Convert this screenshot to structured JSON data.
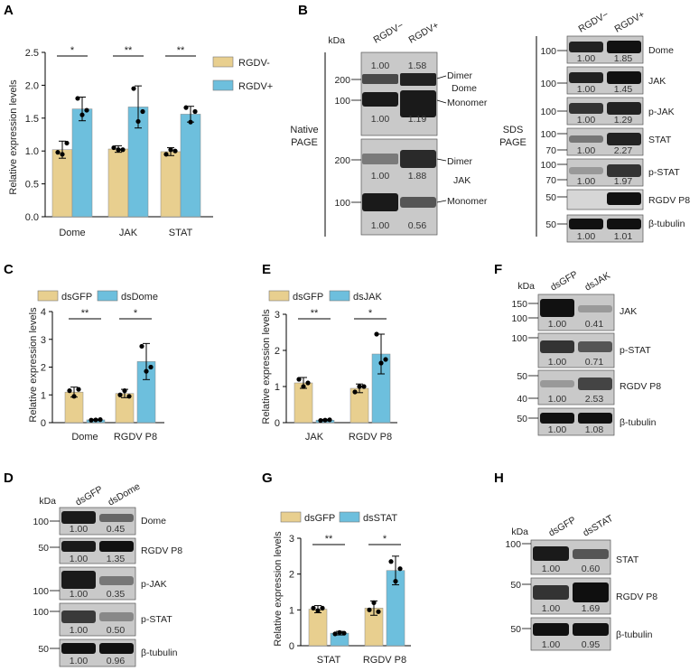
{
  "panels": [
    "A",
    "B",
    "C",
    "D",
    "E",
    "F",
    "G",
    "H"
  ],
  "colors": {
    "bar_a": "#e8cf8f",
    "bar_b": "#6dbfdd",
    "blot_bg": "#c9c9c9"
  },
  "chart_data": [
    {
      "id": "A",
      "type": "bar",
      "categories": [
        "Dome",
        "JAK",
        "STAT"
      ],
      "series": [
        {
          "name": "RGDV-",
          "values": [
            1.02,
            1.03,
            0.99
          ],
          "errors": [
            0.13,
            0.05,
            0.06
          ],
          "points": [
            [
              0.98,
              0.95,
              1.12
            ],
            [
              1.05,
              1.02,
              1.02
            ],
            [
              0.95,
              1.02,
              1.0
            ]
          ]
        },
        {
          "name": "RGDV+",
          "values": [
            1.64,
            1.67,
            1.56
          ],
          "errors": [
            0.18,
            0.32,
            0.12
          ],
          "points": [
            [
              1.8,
              1.55,
              1.62
            ],
            [
              1.95,
              1.45,
              1.6
            ],
            [
              1.66,
              1.44,
              1.6
            ]
          ]
        }
      ],
      "significance": [
        "*",
        "**",
        "**"
      ],
      "ylabel": "Relative expression levels",
      "yticks": [
        "0.0",
        "0.5",
        "1.0",
        "1.5",
        "2.0",
        "2.5"
      ],
      "ylim": [
        0,
        2.5
      ]
    },
    {
      "id": "C",
      "type": "bar",
      "categories": [
        "Dome",
        "RGDV P8"
      ],
      "series": [
        {
          "name": "dsGFP",
          "values": [
            1.1,
            1.05
          ],
          "errors": [
            0.18,
            0.15
          ],
          "points": [
            [
              1.15,
              0.95,
              1.2
            ],
            [
              1.0,
              1.15,
              0.95
            ]
          ]
        },
        {
          "name": "dsDome",
          "values": [
            0.1,
            2.2
          ],
          "errors": [
            0.02,
            0.65
          ],
          "points": [
            [
              0.09,
              0.1,
              0.11
            ],
            [
              2.75,
              1.85,
              2.0
            ]
          ]
        }
      ],
      "significance": [
        "**",
        "*"
      ],
      "ylabel": "Relative expression levels",
      "yticks": [
        "0",
        "1",
        "2",
        "3",
        "4"
      ],
      "ylim": [
        0,
        4
      ]
    },
    {
      "id": "E",
      "type": "bar",
      "categories": [
        "JAK",
        "RGDV P8"
      ],
      "series": [
        {
          "name": "dsGFP",
          "values": [
            1.1,
            0.95
          ],
          "errors": [
            0.15,
            0.12
          ],
          "points": [
            [
              1.2,
              1.0,
              1.1
            ],
            [
              0.85,
              1.0,
              1.0
            ]
          ]
        },
        {
          "name": "dsJAK",
          "values": [
            0.07,
            1.9
          ],
          "errors": [
            0.02,
            0.55
          ],
          "points": [
            [
              0.06,
              0.07,
              0.08
            ],
            [
              2.45,
              1.65,
              1.75
            ]
          ]
        }
      ],
      "significance": [
        "**",
        "*"
      ],
      "ylabel": "Relative expression levels",
      "yticks": [
        "0",
        "1",
        "2",
        "3"
      ],
      "ylim": [
        0,
        3
      ]
    },
    {
      "id": "G",
      "type": "bar",
      "categories": [
        "STAT",
        "RGDV P8"
      ],
      "series": [
        {
          "name": "dsGFP",
          "values": [
            1.02,
            1.05
          ],
          "errors": [
            0.1,
            0.2
          ],
          "points": [
            [
              1.05,
              0.98,
              1.05
            ],
            [
              1.0,
              1.2,
              0.95
            ]
          ]
        },
        {
          "name": "dsSTAT",
          "values": [
            0.35,
            2.1
          ],
          "errors": [
            0.05,
            0.4
          ],
          "points": [
            [
              0.33,
              0.37,
              0.35
            ],
            [
              2.35,
              1.8,
              2.15
            ]
          ]
        }
      ],
      "significance": [
        "**",
        "*"
      ],
      "ylabel": "Relative expression levels",
      "yticks": [
        "0",
        "1",
        "2",
        "3"
      ],
      "ylim": [
        0,
        3
      ]
    }
  ],
  "blots": {
    "B_native": {
      "kda": "kDa",
      "lanes": [
        "RGDV−",
        "RGDV+"
      ],
      "side_label": [
        "Native",
        "PAGE"
      ],
      "dome": {
        "markers": [
          "200",
          "100"
        ],
        "name": "Dome",
        "dimer_label": "Dimer",
        "monomer_label": "Monomer",
        "dimer_values": [
          "1.00",
          "1.58"
        ],
        "monomer_values": [
          "1.00",
          "1.19"
        ]
      },
      "jak": {
        "markers": [
          "200",
          "100"
        ],
        "name": "JAK",
        "dimer_label": "Dimer",
        "monomer_label": "Monomer",
        "dimer_values": [
          "1.00",
          "1.88"
        ],
        "monomer_values": [
          "1.00",
          "0.56"
        ]
      }
    },
    "B_sds": {
      "lanes": [
        "RGDV−",
        "RGDV+"
      ],
      "side_label": [
        "SDS",
        "PAGE"
      ],
      "strips": [
        {
          "name": "Dome",
          "markers": [
            "100"
          ],
          "values": [
            "1.00",
            "1.85"
          ]
        },
        {
          "name": "JAK",
          "markers": [
            "100"
          ],
          "values": [
            "1.00",
            "1.45"
          ]
        },
        {
          "name": "p-JAK",
          "markers": [
            "100"
          ],
          "values": [
            "1.00",
            "1.29"
          ]
        },
        {
          "name": "STAT",
          "markers": [
            "100",
            "70"
          ],
          "values": [
            "1.00",
            "2.27"
          ]
        },
        {
          "name": "p-STAT",
          "markers": [
            "100",
            "70"
          ],
          "values": [
            "1.00",
            "1.97"
          ]
        },
        {
          "name": "RGDV P8",
          "markers": [
            "50"
          ],
          "values": []
        },
        {
          "name": "β-tubulin",
          "markers": [
            "50"
          ],
          "values": [
            "1.00",
            "1.01"
          ]
        }
      ]
    },
    "D": {
      "kda": "kDa",
      "lanes": [
        "dsGFP",
        "dsDome"
      ],
      "strips": [
        {
          "name": "Dome",
          "markers": [
            "100"
          ],
          "values": [
            "1.00",
            "0.45"
          ]
        },
        {
          "name": "RGDV P8",
          "markers": [
            "50"
          ],
          "values": [
            "1.00",
            "1.35"
          ]
        },
        {
          "name": "p-JAK",
          "markers": [
            "100"
          ],
          "values": [
            "1.00",
            "0.35"
          ]
        },
        {
          "name": "p-STAT",
          "markers": [
            "100"
          ],
          "values": [
            "1.00",
            "0.50"
          ]
        },
        {
          "name": "β-tubulin",
          "markers": [
            "50"
          ],
          "values": [
            "1.00",
            "0.96"
          ]
        }
      ]
    },
    "F": {
      "kda": "kDa",
      "lanes": [
        "dsGFP",
        "dsJAK"
      ],
      "strips": [
        {
          "name": "JAK",
          "markers": [
            "150",
            "100"
          ],
          "values": [
            "1.00",
            "0.41"
          ]
        },
        {
          "name": "p-STAT",
          "markers": [
            "100"
          ],
          "values": [
            "1.00",
            "0.71"
          ]
        },
        {
          "name": "RGDV P8",
          "markers": [
            "50",
            "40"
          ],
          "values": [
            "1.00",
            "2.53"
          ]
        },
        {
          "name": "β-tubulin",
          "markers": [
            "50"
          ],
          "values": [
            "1.00",
            "1.08"
          ]
        }
      ]
    },
    "H": {
      "kda": "kDa",
      "lanes": [
        "dsGFP",
        "dsSTAT"
      ],
      "strips": [
        {
          "name": "STAT",
          "markers": [
            "100"
          ],
          "values": [
            "1.00",
            "0.60"
          ]
        },
        {
          "name": "RGDV P8",
          "markers": [
            "50"
          ],
          "values": [
            "1.00",
            "1.69"
          ]
        },
        {
          "name": "β-tubulin",
          "markers": [
            "50"
          ],
          "values": [
            "1.00",
            "0.95"
          ]
        }
      ]
    }
  }
}
